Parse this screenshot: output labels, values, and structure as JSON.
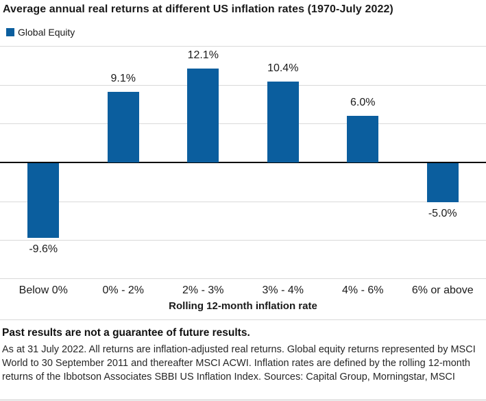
{
  "title": "Average annual real returns at different US inflation rates (1970-July 2022)",
  "legend": {
    "label": "Global Equity",
    "swatch_color": "#0b5e9e"
  },
  "chart_data": {
    "type": "bar",
    "title": "Average annual real returns at different US inflation rates (1970-July 2022)",
    "series_name": "Global Equity",
    "categories": [
      "Below 0%",
      "0% - 2%",
      "2% - 3%",
      "3% - 4%",
      "4% - 6%",
      "6% or above"
    ],
    "values": [
      -9.6,
      9.1,
      12.1,
      10.4,
      6.0,
      -5.0
    ],
    "value_labels": [
      "-9.6%",
      "9.1%",
      "12.1%",
      "10.4%",
      "6.0%",
      "-5.0%"
    ],
    "xlabel": "Rolling 12-month inflation rate",
    "ylabel": "",
    "ylim": [
      -15,
      15
    ],
    "gridline_step": 5,
    "grid": true,
    "legend_position": "top-left",
    "bar_color": "#0b5e9e",
    "gridline_color": "#d9d9d9",
    "zero_line_color": "#000000"
  },
  "footer": {
    "disclaimer": "Past results are not a guarantee of future results.",
    "note": "As at 31 July 2022. All returns are inflation-adjusted real returns. Global equity returns represented by MSCI World to 30 September 2011 and thereafter MSCI ACWI. Inflation rates are defined by the rolling 12-month returns of the Ibbotson Associates SBBI US Inflation Index. Sources: Capital Group, Morningstar, MSCI"
  }
}
